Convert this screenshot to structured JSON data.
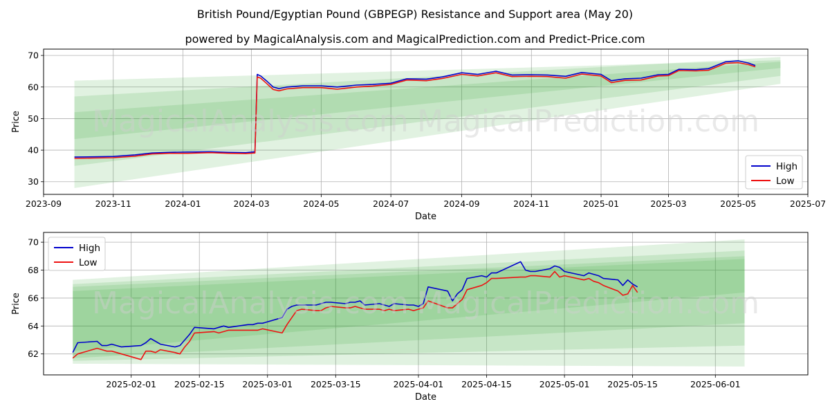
{
  "title": "British Pound/Egyptian Pound (GBPEGP) Resistance and Support area (May 20)",
  "subtitle": "powered by MagicalAnalysis.com and MagicalPrediction.com and Predict-Price.com",
  "watermarks": [
    "MagicalAnalysis.com",
    "MagicalPrediction.com"
  ],
  "colors": {
    "high": "#0000cc",
    "low": "#ee1111",
    "band": "#2ca02c",
    "grid": "#b0b0b0"
  },
  "chart_data": [
    {
      "type": "line",
      "xlabel": "Date",
      "ylabel": "Price",
      "xlim": [
        "2023-09-01",
        "2025-07-01"
      ],
      "ylim": [
        26,
        72
      ],
      "xticks": [
        "2023-09",
        "2023-11",
        "2024-01",
        "2024-03",
        "2024-05",
        "2024-07",
        "2024-09",
        "2024-11",
        "2025-01",
        "2025-03",
        "2025-05",
        "2025-07"
      ],
      "yticks": [
        30,
        40,
        50,
        60,
        70
      ],
      "legend": {
        "position": "lower-right",
        "entries": [
          "High",
          "Low"
        ]
      },
      "bands": [
        {
          "x": [
            "2023-09-28",
            "2025-06-07"
          ],
          "upper": [
            62.0,
            68.5
          ],
          "lower": [
            43.5,
            66.0
          ]
        },
        {
          "x": [
            "2023-09-28",
            "2025-06-07"
          ],
          "upper": [
            57.0,
            69.5
          ],
          "lower": [
            35.0,
            63.5
          ]
        },
        {
          "x": [
            "2023-09-28",
            "2025-06-07"
          ],
          "upper": [
            52.0,
            68.0
          ],
          "lower": [
            28.0,
            61.0
          ]
        }
      ],
      "series": [
        {
          "name": "High",
          "x": [
            "2023-09-28",
            "2023-10-15",
            "2023-11-01",
            "2023-11-20",
            "2023-12-05",
            "2023-12-20",
            "2024-01-05",
            "2024-01-25",
            "2024-02-10",
            "2024-02-25",
            "2024-03-04",
            "2024-03-06",
            "2024-03-09",
            "2024-03-14",
            "2024-03-20",
            "2024-03-25",
            "2024-04-01",
            "2024-04-15",
            "2024-05-01",
            "2024-05-15",
            "2024-06-01",
            "2024-06-15",
            "2024-07-01",
            "2024-07-15",
            "2024-08-01",
            "2024-08-15",
            "2024-09-01",
            "2024-09-15",
            "2024-10-01",
            "2024-10-15",
            "2024-11-01",
            "2024-11-15",
            "2024-12-01",
            "2024-12-15",
            "2025-01-01",
            "2025-01-10",
            "2025-01-22",
            "2025-02-05",
            "2025-02-20",
            "2025-03-01",
            "2025-03-10",
            "2025-03-25",
            "2025-04-05",
            "2025-04-20",
            "2025-05-01",
            "2025-05-10",
            "2025-05-16"
          ],
          "values": [
            37.8,
            37.9,
            38.0,
            38.5,
            39.1,
            39.3,
            39.4,
            39.5,
            39.3,
            39.2,
            39.5,
            64.0,
            63.5,
            62.0,
            60.0,
            59.5,
            60.0,
            60.4,
            60.4,
            60.0,
            60.6,
            60.8,
            61.2,
            62.6,
            62.5,
            63.2,
            64.5,
            64.0,
            65.0,
            63.8,
            63.9,
            63.8,
            63.4,
            64.6,
            64.0,
            62.0,
            62.6,
            62.8,
            63.9,
            64.0,
            65.6,
            65.5,
            65.8,
            68.0,
            68.3,
            67.6,
            66.8
          ]
        },
        {
          "name": "Low",
          "x": [
            "2023-09-28",
            "2023-10-15",
            "2023-11-01",
            "2023-11-20",
            "2023-12-05",
            "2023-12-20",
            "2024-01-05",
            "2024-01-25",
            "2024-02-10",
            "2024-02-25",
            "2024-03-04",
            "2024-03-06",
            "2024-03-09",
            "2024-03-14",
            "2024-03-20",
            "2024-03-25",
            "2024-04-01",
            "2024-04-15",
            "2024-05-01",
            "2024-05-15",
            "2024-06-01",
            "2024-06-15",
            "2024-07-01",
            "2024-07-15",
            "2024-08-01",
            "2024-08-15",
            "2024-09-01",
            "2024-09-15",
            "2024-10-01",
            "2024-10-15",
            "2024-11-01",
            "2024-11-15",
            "2024-12-01",
            "2024-12-15",
            "2025-01-01",
            "2025-01-10",
            "2025-01-22",
            "2025-02-05",
            "2025-02-20",
            "2025-03-01",
            "2025-03-10",
            "2025-03-25",
            "2025-04-05",
            "2025-04-20",
            "2025-05-01",
            "2025-05-10",
            "2025-05-16"
          ],
          "values": [
            37.4,
            37.5,
            37.6,
            38.1,
            38.8,
            39.0,
            39.0,
            39.2,
            39.0,
            38.9,
            39.1,
            63.2,
            62.8,
            61.2,
            59.2,
            58.8,
            59.4,
            59.8,
            59.8,
            59.3,
            60.0,
            60.3,
            60.8,
            62.2,
            62.0,
            62.7,
            64.0,
            63.5,
            64.5,
            63.3,
            63.4,
            63.3,
            62.8,
            64.1,
            63.5,
            61.4,
            62.1,
            62.2,
            63.5,
            63.6,
            65.2,
            65.1,
            65.3,
            67.5,
            67.7,
            67.1,
            66.4
          ]
        }
      ]
    },
    {
      "type": "line",
      "xlabel": "Date",
      "ylabel": "Price",
      "xlim": [
        "2025-01-14",
        "2025-06-20"
      ],
      "ylim": [
        60.5,
        70.7
      ],
      "xticks": [
        "2025-02-01",
        "2025-02-15",
        "2025-03-01",
        "2025-03-15",
        "2025-04-01",
        "2025-04-15",
        "2025-05-01",
        "2025-05-15",
        "2025-06-01"
      ],
      "yticks": [
        62,
        64,
        66,
        68,
        70
      ],
      "legend": {
        "position": "upper-left",
        "entries": [
          "High",
          "Low"
        ]
      },
      "bands": [
        {
          "x": [
            "2025-01-20",
            "2025-06-07"
          ],
          "upper": [
            67.3,
            70.2
          ],
          "lower": [
            61.3,
            61.1
          ]
        },
        {
          "x": [
            "2025-01-20",
            "2025-06-07"
          ],
          "upper": [
            67.0,
            69.4
          ],
          "lower": [
            61.5,
            62.6
          ]
        },
        {
          "x": [
            "2025-01-20",
            "2025-06-07"
          ],
          "upper": [
            66.8,
            69.0
          ],
          "lower": [
            61.7,
            64.2
          ]
        },
        {
          "x": [
            "2025-01-20",
            "2025-06-07"
          ],
          "upper": [
            66.5,
            68.8
          ],
          "lower": [
            62.2,
            66.4
          ]
        }
      ],
      "series": [
        {
          "name": "High",
          "x": [
            "2025-01-20",
            "2025-01-21",
            "2025-01-25",
            "2025-01-26",
            "2025-01-27",
            "2025-01-28",
            "2025-01-29",
            "2025-01-30",
            "2025-02-03",
            "2025-02-04",
            "2025-02-05",
            "2025-02-06",
            "2025-02-07",
            "2025-02-10",
            "2025-02-11",
            "2025-02-12",
            "2025-02-13",
            "2025-02-14",
            "2025-02-18",
            "2025-02-19",
            "2025-02-20",
            "2025-02-21",
            "2025-02-25",
            "2025-02-26",
            "2025-02-27",
            "2025-02-28",
            "2025-03-04",
            "2025-03-05",
            "2025-03-06",
            "2025-03-07",
            "2025-03-08",
            "2025-03-11",
            "2025-03-12",
            "2025-03-13",
            "2025-03-14",
            "2025-03-17",
            "2025-03-18",
            "2025-03-19",
            "2025-03-20",
            "2025-03-21",
            "2025-03-24",
            "2025-03-25",
            "2025-03-26",
            "2025-03-27",
            "2025-03-30",
            "2025-03-31",
            "2025-04-01",
            "2025-04-02",
            "2025-04-03",
            "2025-04-07",
            "2025-04-08",
            "2025-04-09",
            "2025-04-10",
            "2025-04-11",
            "2025-04-14",
            "2025-04-15",
            "2025-04-16",
            "2025-04-17",
            "2025-04-22",
            "2025-04-23",
            "2025-04-24",
            "2025-04-25",
            "2025-04-28",
            "2025-04-29",
            "2025-04-30",
            "2025-05-01",
            "2025-05-05",
            "2025-05-06",
            "2025-05-07",
            "2025-05-08",
            "2025-05-09",
            "2025-05-12",
            "2025-05-13",
            "2025-05-14",
            "2025-05-15",
            "2025-05-16"
          ],
          "values": [
            62.1,
            62.8,
            62.9,
            62.6,
            62.6,
            62.7,
            62.6,
            62.5,
            62.6,
            62.8,
            63.1,
            62.9,
            62.7,
            62.5,
            62.6,
            63.0,
            63.4,
            63.9,
            63.8,
            63.9,
            64.0,
            63.9,
            64.1,
            64.1,
            64.2,
            64.2,
            64.6,
            65.2,
            65.4,
            65.5,
            65.5,
            65.5,
            65.6,
            65.7,
            65.7,
            65.6,
            65.7,
            65.7,
            65.8,
            65.5,
            65.6,
            65.5,
            65.4,
            65.6,
            65.5,
            65.5,
            65.4,
            65.6,
            66.8,
            66.5,
            65.8,
            66.3,
            66.6,
            67.4,
            67.6,
            67.5,
            67.8,
            67.8,
            68.6,
            68.0,
            67.9,
            67.9,
            68.1,
            68.3,
            68.2,
            67.9,
            67.6,
            67.8,
            67.7,
            67.6,
            67.4,
            67.3,
            66.9,
            67.3,
            67.0,
            66.8
          ]
        },
        {
          "name": "Low",
          "x": [
            "2025-01-20",
            "2025-01-21",
            "2025-01-25",
            "2025-01-26",
            "2025-01-27",
            "2025-01-28",
            "2025-01-29",
            "2025-01-30",
            "2025-02-03",
            "2025-02-04",
            "2025-02-05",
            "2025-02-06",
            "2025-02-07",
            "2025-02-10",
            "2025-02-11",
            "2025-02-12",
            "2025-02-13",
            "2025-02-14",
            "2025-02-18",
            "2025-02-19",
            "2025-02-20",
            "2025-02-21",
            "2025-02-25",
            "2025-02-26",
            "2025-02-27",
            "2025-02-28",
            "2025-03-04",
            "2025-03-05",
            "2025-03-06",
            "2025-03-07",
            "2025-03-08",
            "2025-03-11",
            "2025-03-12",
            "2025-03-13",
            "2025-03-14",
            "2025-03-17",
            "2025-03-18",
            "2025-03-19",
            "2025-03-20",
            "2025-03-21",
            "2025-03-24",
            "2025-03-25",
            "2025-03-26",
            "2025-03-27",
            "2025-03-30",
            "2025-03-31",
            "2025-04-01",
            "2025-04-02",
            "2025-04-03",
            "2025-04-07",
            "2025-04-08",
            "2025-04-09",
            "2025-04-10",
            "2025-04-11",
            "2025-04-14",
            "2025-04-15",
            "2025-04-16",
            "2025-04-17",
            "2025-04-22",
            "2025-04-23",
            "2025-04-24",
            "2025-04-25",
            "2025-04-28",
            "2025-04-29",
            "2025-04-30",
            "2025-05-01",
            "2025-05-05",
            "2025-05-06",
            "2025-05-07",
            "2025-05-08",
            "2025-05-09",
            "2025-05-12",
            "2025-05-13",
            "2025-05-14",
            "2025-05-15",
            "2025-05-16"
          ],
          "values": [
            61.7,
            62.0,
            62.4,
            62.3,
            62.2,
            62.2,
            62.1,
            62.0,
            61.6,
            62.2,
            62.2,
            62.1,
            62.3,
            62.1,
            62.0,
            62.5,
            62.9,
            63.5,
            63.6,
            63.5,
            63.6,
            63.7,
            63.7,
            63.7,
            63.7,
            63.8,
            63.5,
            64.1,
            64.6,
            65.1,
            65.2,
            65.1,
            65.1,
            65.3,
            65.4,
            65.3,
            65.3,
            65.4,
            65.3,
            65.2,
            65.2,
            65.1,
            65.2,
            65.1,
            65.2,
            65.1,
            65.2,
            65.3,
            65.8,
            65.3,
            65.3,
            65.6,
            65.9,
            66.6,
            66.9,
            67.1,
            67.4,
            67.4,
            67.5,
            67.5,
            67.6,
            67.6,
            67.5,
            67.9,
            67.5,
            67.6,
            67.3,
            67.4,
            67.2,
            67.1,
            66.9,
            66.5,
            66.2,
            66.3,
            66.9,
            66.4
          ]
        }
      ]
    }
  ]
}
